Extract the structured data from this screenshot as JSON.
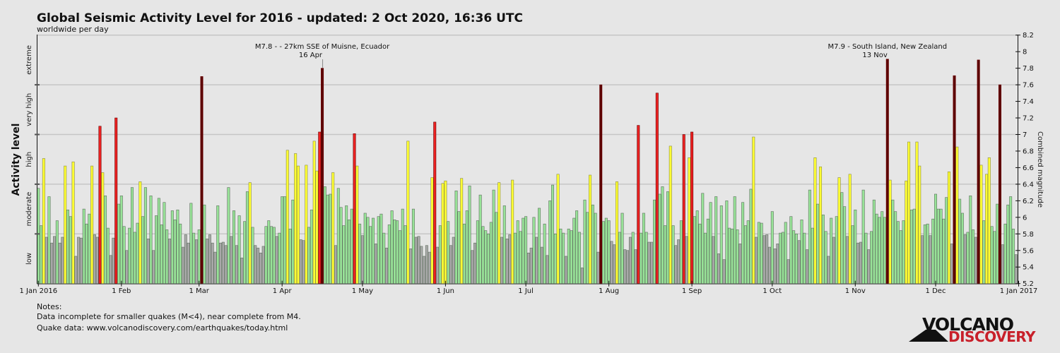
{
  "title": "Global Seismic Activity Level for 2016 - updated:  2 Oct 2020, 16:36 UTC",
  "subtitle": "worldwide per day",
  "notes": {
    "heading": "Notes:",
    "line1": "Data incomplete for smaller quakes (M<4), near complete from M4.",
    "line2": "Quake data: www.volcanodiscovery.com/earthquakes/today.html"
  },
  "logo": {
    "line1": "VOLCANO",
    "line2": "DISCOVERY"
  },
  "chart_data": {
    "type": "bar",
    "title": "Global Seismic Activity Level for 2016 - updated:  2 Oct 2020, 16:36 UTC",
    "subtitle": "worldwide per day",
    "ylabel_left": "Activity level",
    "ylabel_right": "Combined magnitude",
    "ylim": [
      5.2,
      8.2
    ],
    "y_ticks": [
      "5.2",
      "5.4",
      "5.6",
      "5.8",
      "6",
      "6.2",
      "6.4",
      "6.6",
      "6.8",
      "7",
      "7.2",
      "7.4",
      "7.6",
      "7.8",
      "8",
      "8.2"
    ],
    "gridlines": [
      5.8,
      6.4,
      7.0,
      7.6,
      8.2
    ],
    "activity_levels": [
      {
        "label": "low",
        "from": 5.2,
        "to": 5.8,
        "color": "#a9a9a9"
      },
      {
        "label": "moderate",
        "from": 5.8,
        "to": 6.4,
        "color": "#98e398"
      },
      {
        "label": "high",
        "from": 6.4,
        "to": 7.0,
        "color": "#ffff33"
      },
      {
        "label": "very high",
        "from": 7.0,
        "to": 7.6,
        "color": "#ee2222"
      },
      {
        "label": "extreme",
        "from": 7.6,
        "to": 8.2,
        "color": "#5c0000"
      }
    ],
    "x_start": "1 Jan 2016",
    "x_end": "1 Jan 2017",
    "x_ticks": [
      {
        "label": "1 Jan 2016",
        "day": 0
      },
      {
        "label": "1 Feb",
        "day": 31
      },
      {
        "label": "1 Mar",
        "day": 60
      },
      {
        "label": "1 Apr",
        "day": 91
      },
      {
        "label": "1 May",
        "day": 121
      },
      {
        "label": "1 Jun",
        "day": 152
      },
      {
        "label": "1 Jul",
        "day": 182
      },
      {
        "label": "1 Aug",
        "day": 213
      },
      {
        "label": "1 Sep",
        "day": 244
      },
      {
        "label": "1 Oct",
        "day": 274
      },
      {
        "label": "1 Nov",
        "day": 305
      },
      {
        "label": "1 Dec",
        "day": 335
      },
      {
        "label": "1 Jan 2017",
        "day": 366
      }
    ],
    "annotations": [
      {
        "text": "M7.8 - - 27km SSE of Muisne, Ecuador",
        "date": "16 Apr",
        "day": 106,
        "value": 7.8
      },
      {
        "text": "M7.9 - South Island, New Zealand",
        "date": "13 Nov",
        "day": 317,
        "value": 7.91
      }
    ],
    "values": [
      6.35,
      5.9,
      6.71,
      5.76,
      6.25,
      5.69,
      5.77,
      5.96,
      5.69,
      5.76,
      6.62,
      6.09,
      6.01,
      6.67,
      5.53,
      5.76,
      5.75,
      6.1,
      5.92,
      6.04,
      6.62,
      5.79,
      5.76,
      7.1,
      6.54,
      6.26,
      5.87,
      5.54,
      5.75,
      7.2,
      6.16,
      6.26,
      5.89,
      5.6,
      5.87,
      6.36,
      5.82,
      5.93,
      6.43,
      6.01,
      6.36,
      5.74,
      6.26,
      5.6,
      6.02,
      6.23,
      5.91,
      6.18,
      5.85,
      5.74,
      6.08,
      5.97,
      6.09,
      5.92,
      5.64,
      5.79,
      5.69,
      6.17,
      5.81,
      5.73,
      5.85,
      7.7,
      6.15,
      5.74,
      5.79,
      5.69,
      5.58,
      6.14,
      5.69,
      5.7,
      5.66,
      6.36,
      5.77,
      6.08,
      5.66,
      6.02,
      5.51,
      5.95,
      6.31,
      6.42,
      5.88,
      5.66,
      5.63,
      5.57,
      5.65,
      5.89,
      5.96,
      5.89,
      5.88,
      5.77,
      5.81,
      6.25,
      6.25,
      6.81,
      5.86,
      6.21,
      6.77,
      6.62,
      5.73,
      5.72,
      6.63,
      5.88,
      6.09,
      6.92,
      6.56,
      7.03,
      7.8,
      6.37,
      6.27,
      6.28,
      6.54,
      5.66,
      6.35,
      6.12,
      5.9,
      6.14,
      5.97,
      6.1,
      7.01,
      6.62,
      5.92,
      5.78,
      6.05,
      6.0,
      5.89,
      5.99,
      5.68,
      6.01,
      6.04,
      5.81,
      5.63,
      5.91,
      6.08,
      5.97,
      5.96,
      5.84,
      6.1,
      5.9,
      6.92,
      5.62,
      6.1,
      5.76,
      5.77,
      5.65,
      5.53,
      5.66,
      5.58,
      6.48,
      7.15,
      5.64,
      5.9,
      6.41,
      6.44,
      5.95,
      5.66,
      5.76,
      6.32,
      6.07,
      6.47,
      5.92,
      6.08,
      6.38,
      5.6,
      5.69,
      5.96,
      6.27,
      5.89,
      5.84,
      5.8,
      5.94,
      6.33,
      6.06,
      6.42,
      5.76,
      6.14,
      5.74,
      5.79,
      6.45,
      5.81,
      5.96,
      5.83,
      5.99,
      6.01,
      5.57,
      5.63,
      6.0,
      5.76,
      6.11,
      5.64,
      5.92,
      5.54,
      6.2,
      6.39,
      5.8,
      6.52,
      5.86,
      5.81,
      5.53,
      5.86,
      5.84,
      5.99,
      6.08,
      5.82,
      5.39,
      6.21,
      6.06,
      6.51,
      6.15,
      6.05,
      5.58,
      7.6,
      5.95,
      5.99,
      5.96,
      5.71,
      5.67,
      6.43,
      5.82,
      6.05,
      5.61,
      5.6,
      5.76,
      5.82,
      5.61,
      7.11,
      5.81,
      6.05,
      5.82,
      5.7,
      5.7,
      6.21,
      7.5,
      6.28,
      6.37,
      5.9,
      6.31,
      6.86,
      5.9,
      5.66,
      5.73,
      5.96,
      7.0,
      5.77,
      6.72,
      7.03,
      6.01,
      6.08,
      5.92,
      6.29,
      5.81,
      5.98,
      6.18,
      5.77,
      6.25,
      5.56,
      6.14,
      5.49,
      6.2,
      5.87,
      5.86,
      6.25,
      5.85,
      5.68,
      6.18,
      5.9,
      5.96,
      6.34,
      6.97,
      5.76,
      5.94,
      5.93,
      5.78,
      5.79,
      5.64,
      6.07,
      5.62,
      5.68,
      5.81,
      5.82,
      5.94,
      5.49,
      6.01,
      5.84,
      5.8,
      5.72,
      5.97,
      5.81,
      5.61,
      6.33,
      5.87,
      6.72,
      6.16,
      6.61,
      6.03,
      5.83,
      5.53,
      5.99,
      5.76,
      6.01,
      6.48,
      6.3,
      6.13,
      5.77,
      6.52,
      5.9,
      6.09,
      5.69,
      5.7,
      6.33,
      5.81,
      5.61,
      5.83,
      6.21,
      6.04,
      6.0,
      6.07,
      6.0,
      7.91,
      6.45,
      6.21,
      6.07,
      5.95,
      5.84,
      5.96,
      6.44,
      6.91,
      6.09,
      6.1,
      6.91,
      6.62,
      5.78,
      5.91,
      5.92,
      5.78,
      5.98,
      6.28,
      6.1,
      6.1,
      5.98,
      6.24,
      6.55,
      5.68,
      7.71,
      6.85,
      6.22,
      6.05,
      5.79,
      5.82,
      6.26,
      5.85,
      5.76,
      7.9,
      6.63,
      5.96,
      6.52,
      6.72,
      5.89,
      5.83,
      6.16,
      7.6,
      5.67,
      5.92,
      6.15,
      6.25,
      5.86,
      5.55
    ]
  }
}
